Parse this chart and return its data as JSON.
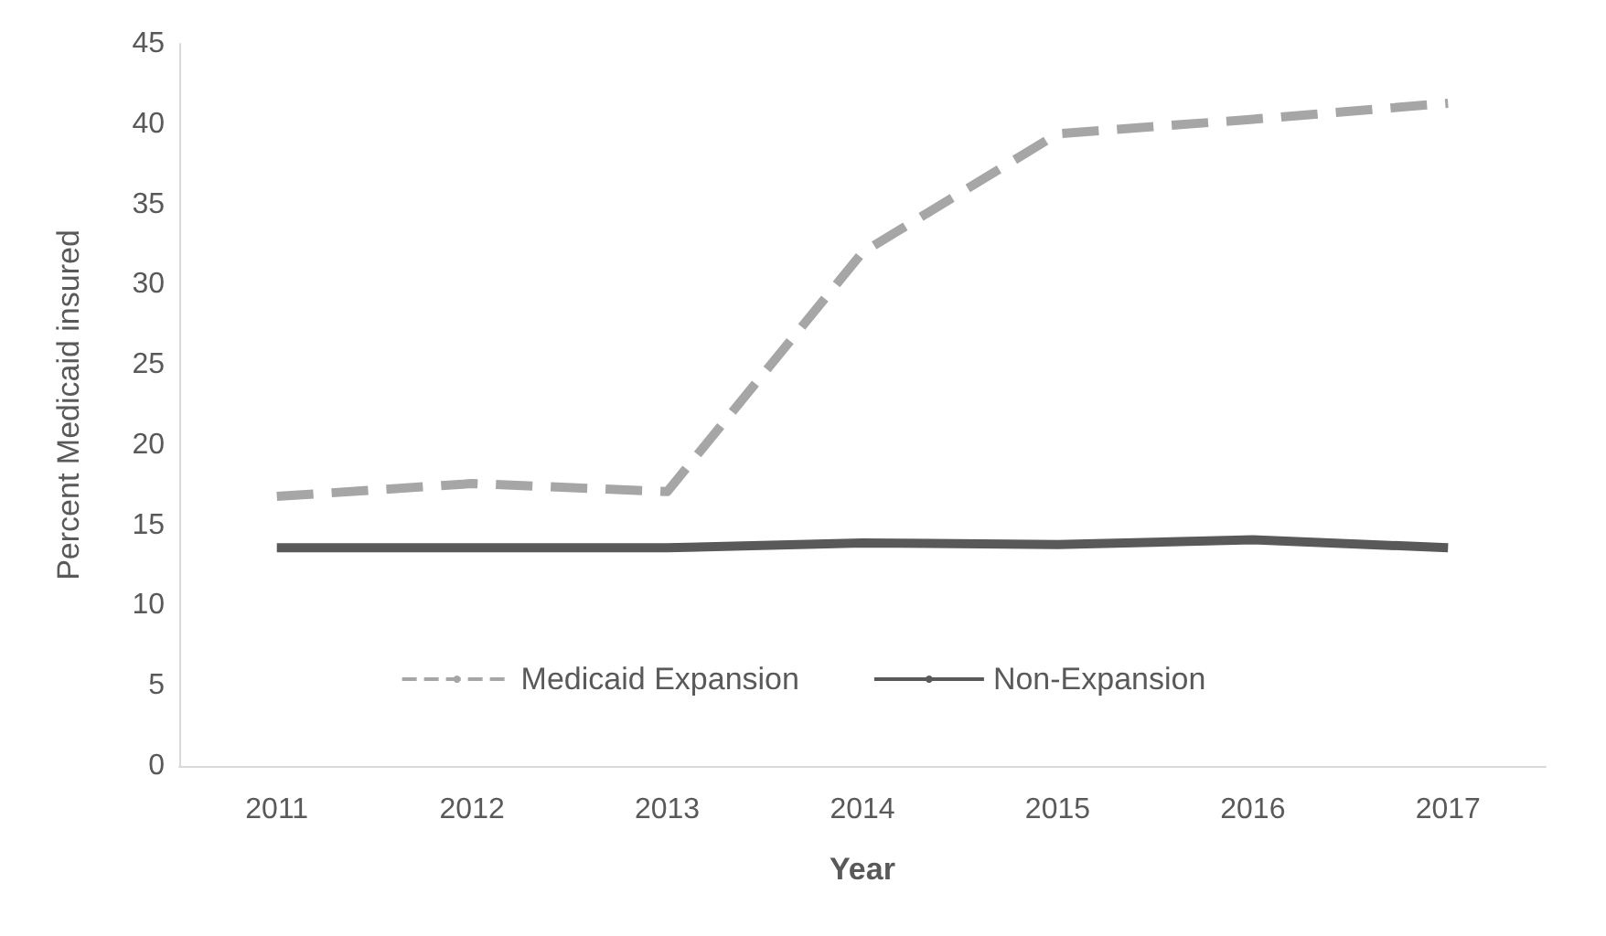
{
  "chart_data": {
    "type": "line",
    "xlabel": "Year",
    "ylabel": "Percent Medicaid insured",
    "categories": [
      "2011",
      "2012",
      "2013",
      "2014",
      "2015",
      "2016",
      "2017"
    ],
    "series": [
      {
        "name": "Medicaid Expansion",
        "color": "#a6a6a6",
        "line_style": "dashed",
        "values": [
          16.8,
          17.6,
          17.1,
          32,
          39.4,
          40.3,
          41.3
        ]
      },
      {
        "name": "Non-Expansion",
        "color": "#595959",
        "line_style": "solid",
        "values": [
          13.6,
          13.6,
          13.6,
          13.9,
          13.8,
          14.1,
          13.6
        ]
      }
    ],
    "ylim": [
      0,
      45
    ],
    "yticks": [
      0,
      5,
      10,
      15,
      20,
      25,
      30,
      35,
      40,
      45
    ],
    "grid": false,
    "legend": "bottom",
    "marker": "none"
  }
}
